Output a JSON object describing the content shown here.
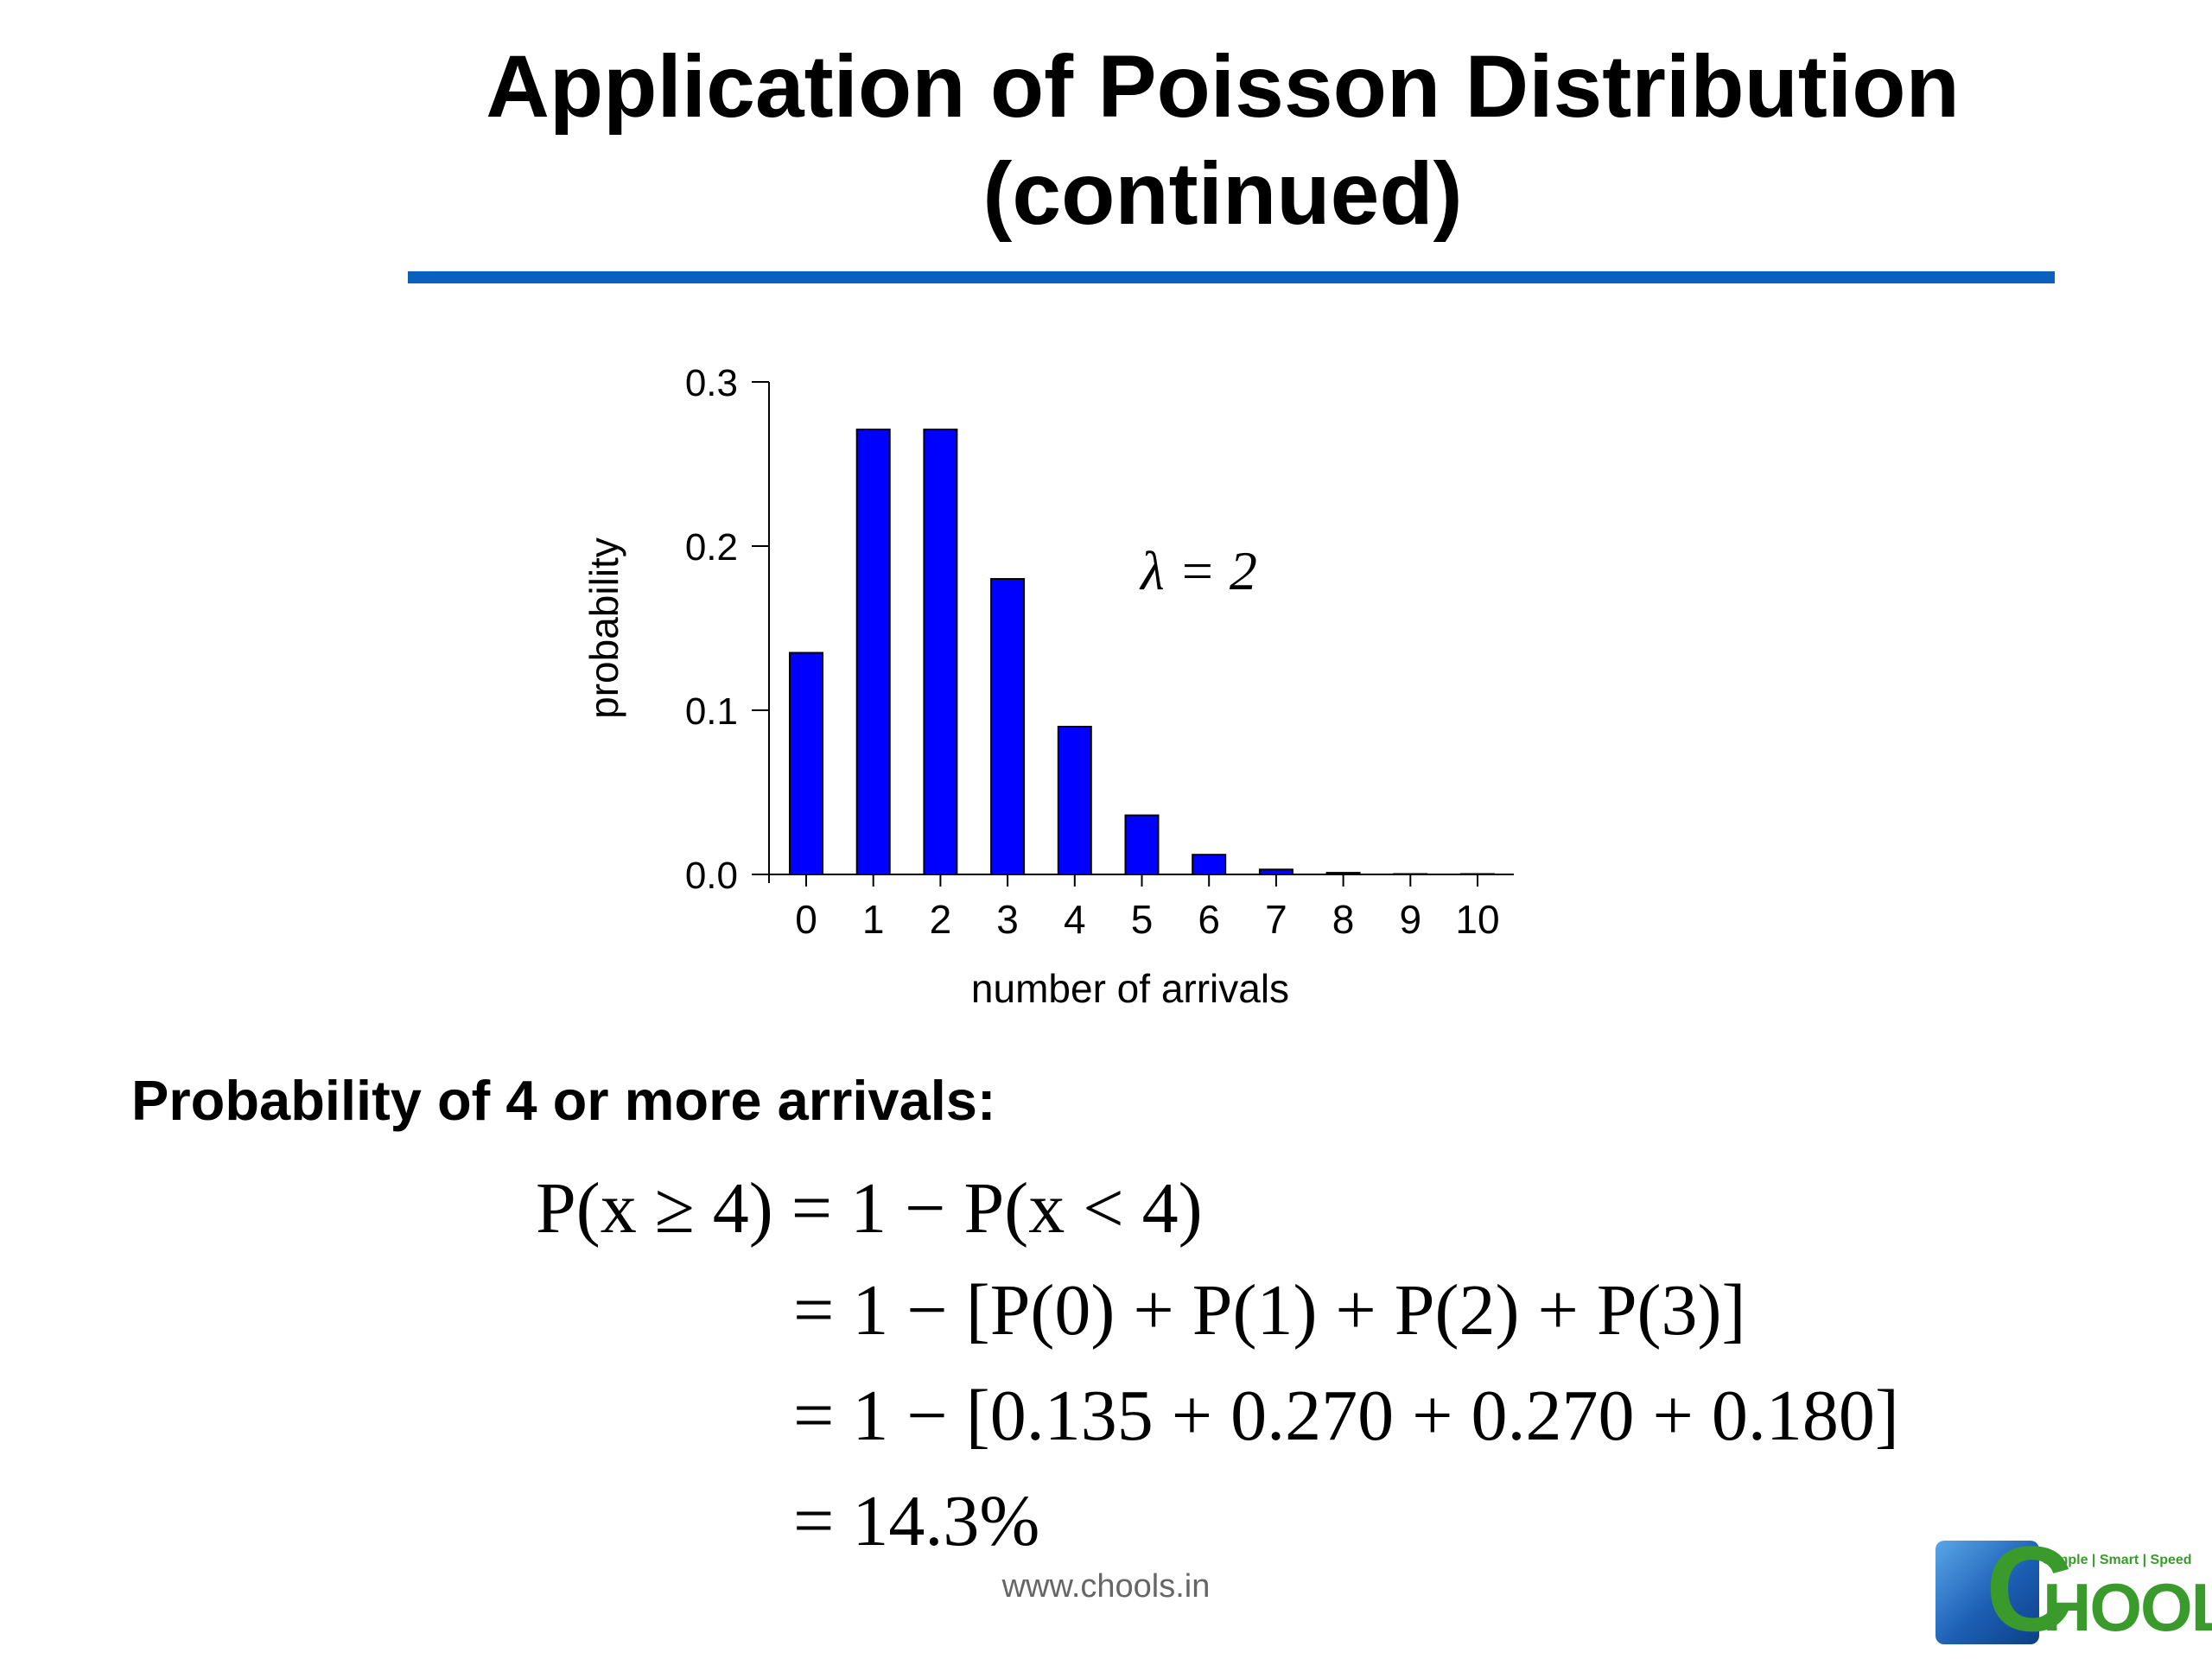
{
  "slide": {
    "title_line1": "Application of Poisson Distribution",
    "title_line2": "(continued)",
    "heading": "Probability of 4 or more arrivals:",
    "footer": "www.chools.in",
    "logo": {
      "letter": "C",
      "rest": "HOOLS",
      "tagline": "Simple | Smart | Speed"
    },
    "rule_color": "#0b5fbf"
  },
  "equations": {
    "line1": "P(x ≥ 4) = 1 − P(x < 4)",
    "line2": "= 1 − [P(0) + P(1) + P(2) + P(3)]",
    "line3": "= 1 − [0.135 + 0.270 + 0.270 + 0.180]",
    "line4": "= 14.3%"
  },
  "chart_data": {
    "type": "bar",
    "title": "",
    "xlabel": "number of arrivals",
    "ylabel": "probability",
    "annotation": "λ = 2",
    "categories": [
      "0",
      "1",
      "2",
      "3",
      "4",
      "5",
      "6",
      "7",
      "8",
      "9",
      "10"
    ],
    "values": [
      0.135,
      0.271,
      0.271,
      0.18,
      0.09,
      0.036,
      0.012,
      0.003,
      0.001,
      0.0002,
      4e-05
    ],
    "ylim": [
      0,
      0.3
    ],
    "yticks": [
      "0.0",
      "0.1",
      "0.2",
      "0.3"
    ],
    "grid": false,
    "bar_color": "#0000ff"
  }
}
